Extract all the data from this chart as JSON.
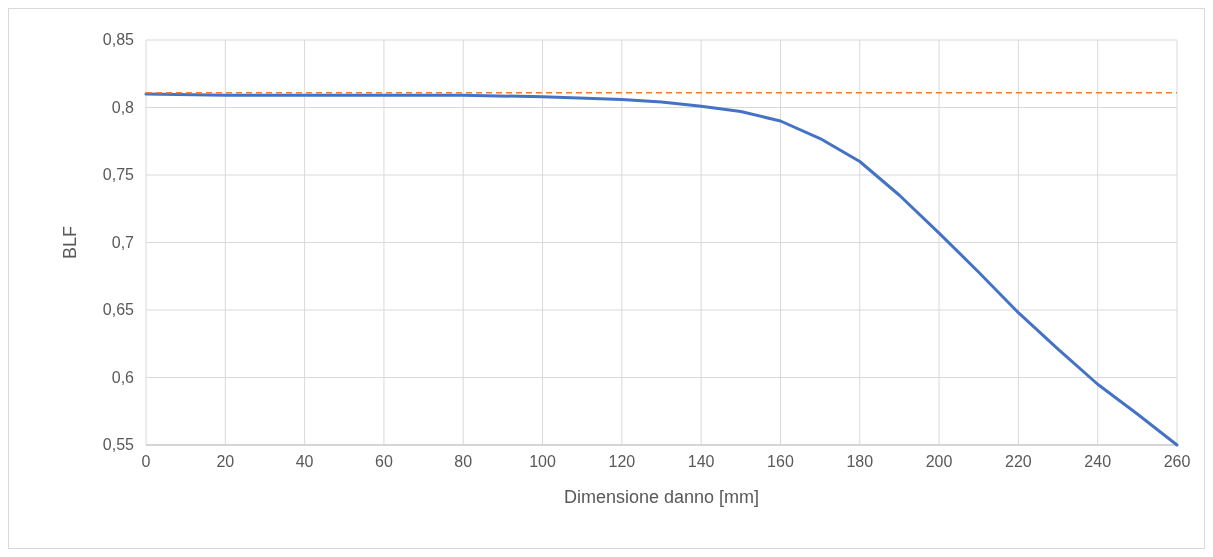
{
  "chart_data": {
    "type": "line",
    "xlabel": "Dimensione danno [mm]",
    "ylabel": "BLF",
    "x": [
      0,
      20,
      40,
      60,
      80,
      100,
      120,
      130,
      140,
      150,
      160,
      170,
      180,
      190,
      200,
      210,
      220,
      230,
      240,
      250,
      260
    ],
    "series": [
      {
        "color": "#4472c4",
        "values": [
          0.81,
          0.809,
          0.809,
          0.809,
          0.809,
          0.808,
          0.806,
          0.804,
          0.801,
          0.797,
          0.79,
          0.777,
          0.76,
          0.735,
          0.707,
          0.678,
          0.648,
          0.621,
          0.595,
          0.573,
          0.55
        ]
      }
    ],
    "xlim": [
      0,
      260
    ],
    "xticks": [
      0,
      20,
      40,
      60,
      80,
      100,
      120,
      140,
      160,
      180,
      200,
      220,
      240,
      260
    ],
    "ylim": [
      0.55,
      0.85
    ],
    "yticks": [
      {
        "value": 0.55,
        "label": "0,55"
      },
      {
        "value": 0.6,
        "label": "0,6"
      },
      {
        "value": 0.65,
        "label": "0,65"
      },
      {
        "value": 0.7,
        "label": "0,7"
      },
      {
        "value": 0.75,
        "label": "0,75"
      },
      {
        "value": 0.8,
        "label": "0,8"
      },
      {
        "value": 0.85,
        "label": "0,85"
      }
    ],
    "ref_lines": [
      {
        "axis": "y",
        "value": 0.811,
        "color": "#ed7d31",
        "line_style": "dashed"
      }
    ],
    "grid": true,
    "marker": "none",
    "line_style": "solid"
  }
}
